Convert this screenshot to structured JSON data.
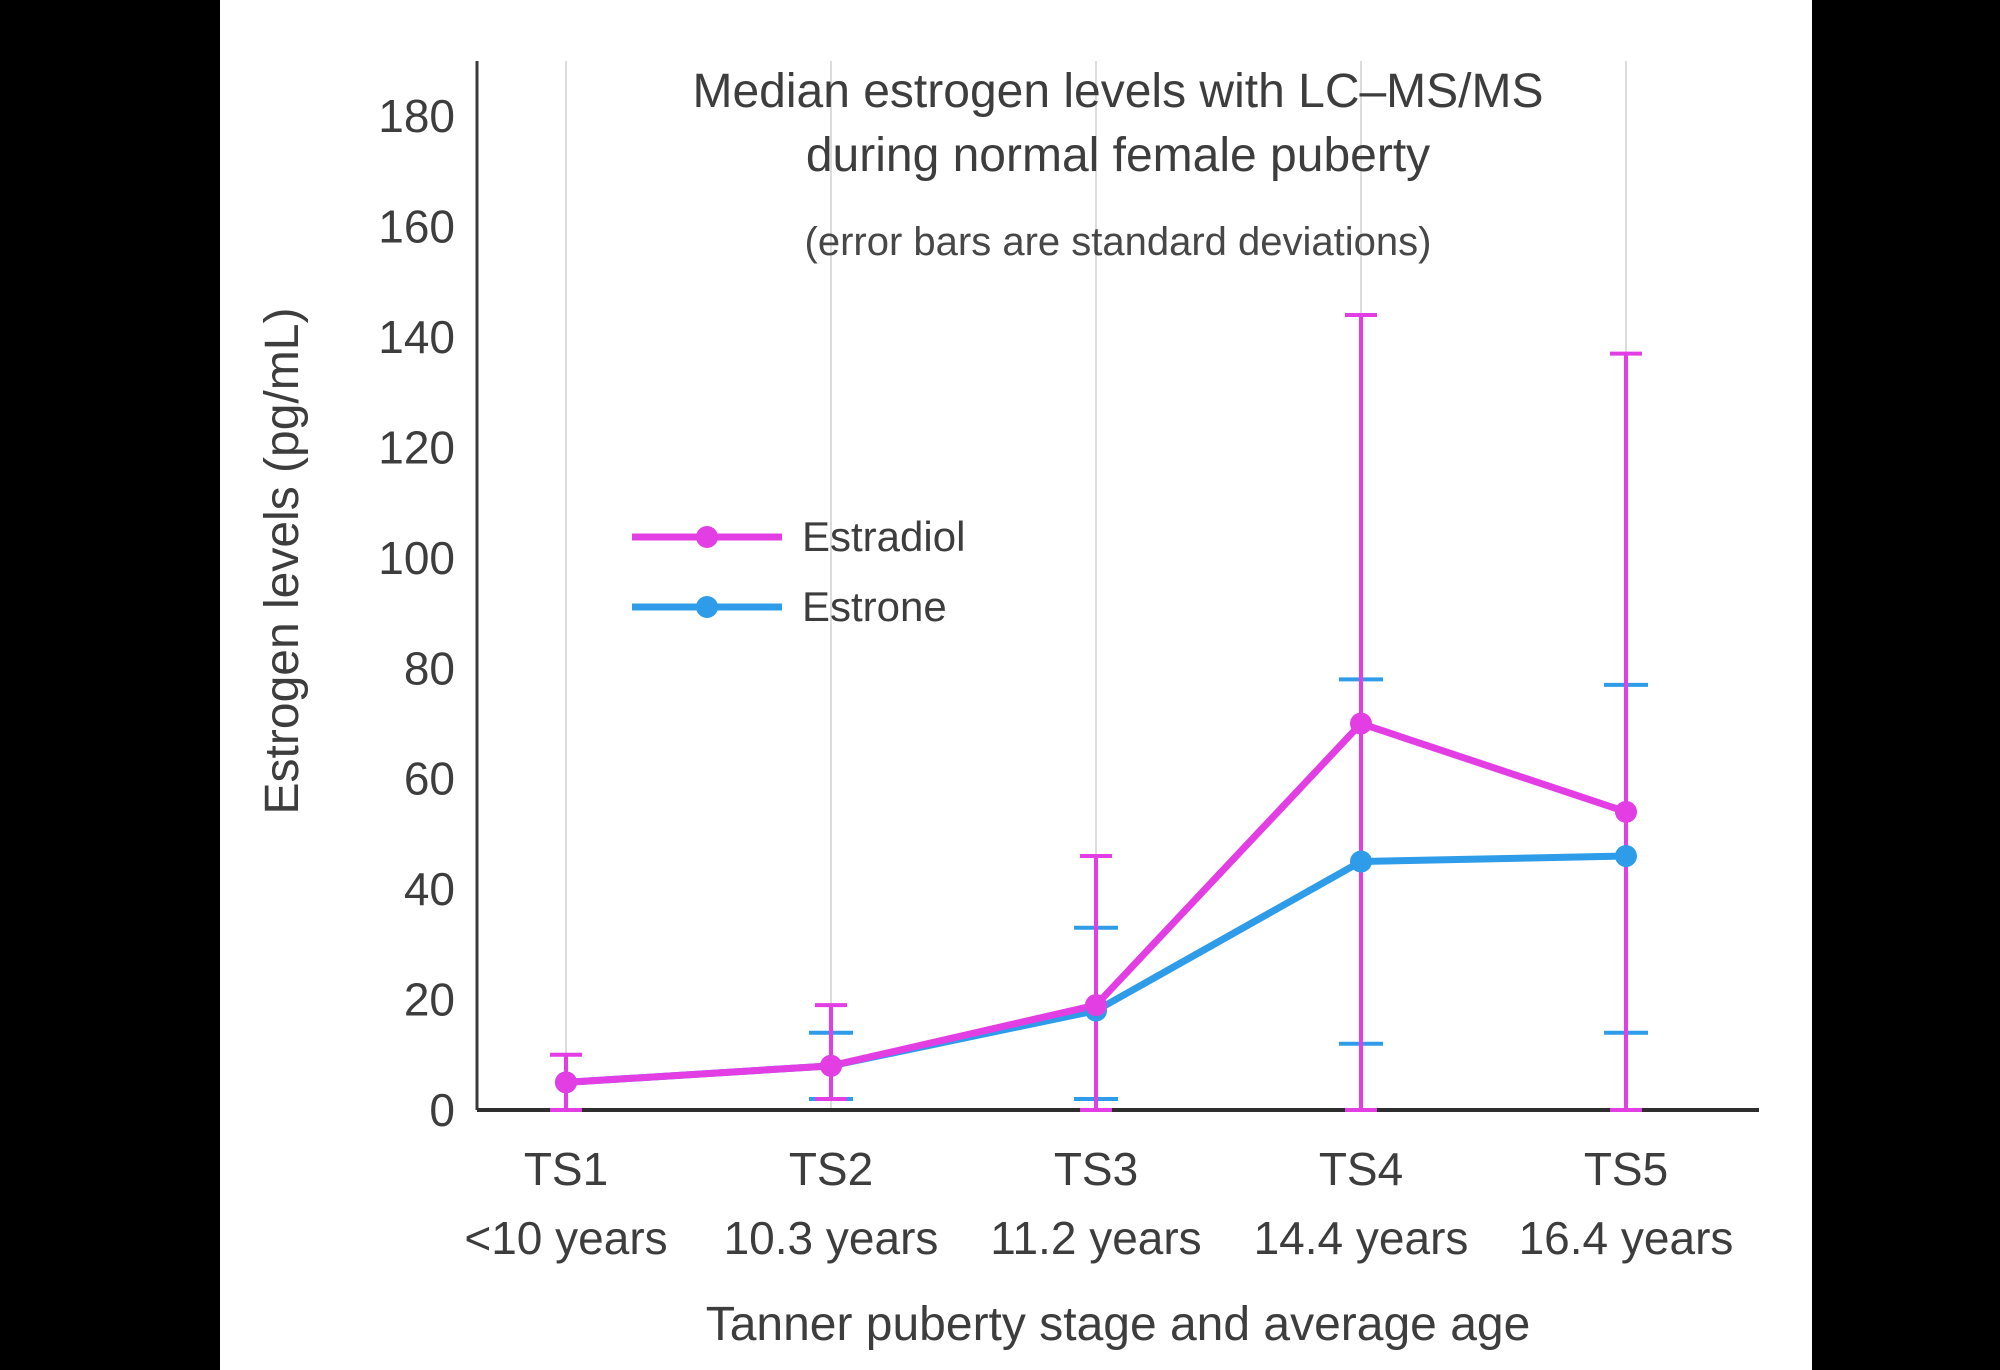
{
  "page": {
    "background_color": "#000000",
    "panel_color": "#ffffff"
  },
  "chart_data": {
    "type": "line",
    "title": "Median estrogen levels with LC–MS/MS during normal female puberty",
    "title_lines": [
      "Median estrogen levels with LC–MS/MS",
      "during normal female puberty"
    ],
    "subtitle": "(error bars are standard deviations)",
    "xlabel": "Tanner puberty stage and average age",
    "ylabel": "Estrogen levels (pg/mL)",
    "categories": [
      "TS1",
      "TS2",
      "TS3",
      "TS4",
      "TS5"
    ],
    "category_sublabels": [
      "<10 years",
      "10.3 years",
      "11.2 years",
      "14.4 years",
      "16.4 years"
    ],
    "yticks": [
      0,
      20,
      40,
      60,
      80,
      100,
      120,
      140,
      160,
      180
    ],
    "ylim": [
      0,
      190
    ],
    "grid": "vertical",
    "legend_position": "inside-upper-left",
    "axis_color": "#3a3a3a",
    "gridline_color": "#dcdcdc",
    "text_color": "#3d3d3d",
    "series": [
      {
        "name": "Estradiol",
        "color": "#e33ee3",
        "values": [
          5,
          8,
          19,
          70,
          54
        ],
        "error_low": [
          0,
          2,
          0,
          0,
          0
        ],
        "error_high": [
          10,
          19,
          46,
          144,
          137
        ]
      },
      {
        "name": "Estrone",
        "color": "#2e9ce8",
        "values": [
          5,
          8,
          18,
          45,
          46
        ],
        "error_low": [
          null,
          2,
          2,
          12,
          14
        ],
        "error_high": [
          null,
          14,
          33,
          78,
          77
        ]
      }
    ]
  }
}
